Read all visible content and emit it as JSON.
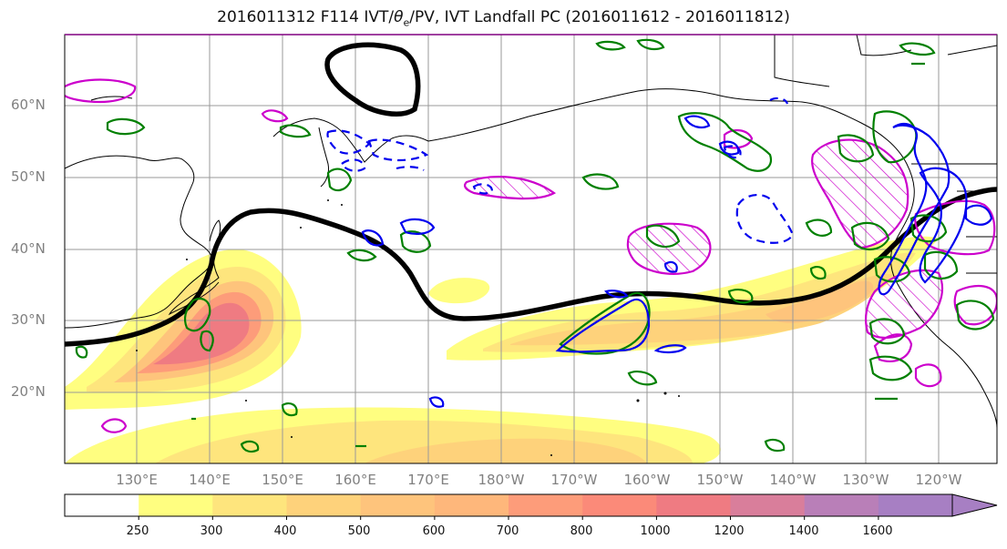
{
  "title": {
    "prefix": "2016011312 F114 IVT/",
    "theta": "θ",
    "theta_sub": "e",
    "suffix": "/PV, IVT Landfall PC (2016011612 - 2016011812)"
  },
  "lat_labels": [
    "60°N",
    "50°N",
    "40°N",
    "30°N",
    "20°N"
  ],
  "lon_labels": [
    "130°E",
    "140°E",
    "150°E",
    "160°E",
    "170°E",
    "180°W",
    "170°W",
    "160°W",
    "150°W",
    "140°W",
    "130°W",
    "120°W"
  ],
  "colorbar": {
    "ticks": [
      "250",
      "300",
      "400",
      "500",
      "600",
      "700",
      "800",
      "1000",
      "1200",
      "1400",
      "1600"
    ],
    "colors": [
      "#ffffff",
      "#fffe80",
      "#fee57d",
      "#fed27b",
      "#fec47c",
      "#feb77b",
      "#fd9c7a",
      "#fb8a79",
      "#ef7b82",
      "#d97e9b",
      "#b97fb8",
      "#a77fc3"
    ]
  },
  "legend_colors": {
    "pv_contour": "#0000ee",
    "theta_e_contour": "#008000",
    "landfall_pc": "#cc00cc",
    "jet_line": "#000000",
    "coast": "#000000"
  }
}
